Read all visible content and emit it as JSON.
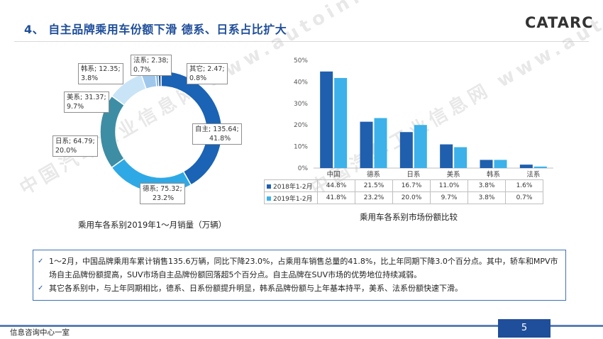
{
  "slide": {
    "title": "4、 自主品牌乘用车份额下滑  德系、日系占比扩大",
    "logo_text": "CATARC",
    "page_number": "5",
    "footer": "信息咨询中心一室",
    "watermark": "中国汽车工业信息网 www.autoinfo.org.cn"
  },
  "pie_caption": "乘用车各系别2019年1～月销量（万辆）",
  "bar_caption": "乘用车各系别市场份额比较",
  "colors": {
    "series_2018": "#1f5fae",
    "series_2019": "#3cb1ea",
    "title": "#1f4e9a"
  },
  "chart_data": [
    {
      "type": "pie",
      "style": "doughnut",
      "title": "乘用车各系别2019年1～月销量（万辆）",
      "slices": [
        {
          "name": "自主",
          "value": 135.64,
          "pct": "41.8%",
          "color": "#1a63b5"
        },
        {
          "name": "德系",
          "value": 75.32,
          "pct": "23.2%",
          "color": "#2fa9e6"
        },
        {
          "name": "日系",
          "value": 64.79,
          "pct": "20.0%",
          "color": "#3d8ea4"
        },
        {
          "name": "美系",
          "value": 31.37,
          "pct": "9.7%",
          "color": "#c9e4f7"
        },
        {
          "name": "韩系",
          "value": 12.35,
          "pct": "3.8%",
          "color": "#9fc7ec"
        },
        {
          "name": "法系",
          "value": 2.38,
          "pct": "0.7%",
          "color": "#6fa8dc"
        },
        {
          "name": "其它",
          "value": 2.47,
          "pct": "0.8%",
          "color": "#1a4f8f"
        }
      ]
    },
    {
      "type": "bar",
      "title": "乘用车各系别市场份额比较",
      "categories": [
        "中国",
        "德系",
        "日系",
        "美系",
        "韩系",
        "法系"
      ],
      "series": [
        {
          "name": "2018年1-2月",
          "values": [
            44.8,
            21.5,
            16.7,
            11.0,
            3.8,
            1.6
          ],
          "labels": [
            "44.8%",
            "21.5%",
            "16.7%",
            "11.0%",
            "3.8%",
            "1.6%"
          ]
        },
        {
          "name": "2019年1-2月",
          "values": [
            41.8,
            23.2,
            20.0,
            9.7,
            3.8,
            0.7
          ],
          "labels": [
            "41.8%",
            "23.2%",
            "20.0%",
            "9.7%",
            "3.8%",
            "0.7%"
          ]
        }
      ],
      "ylim": [
        0,
        50
      ],
      "yticks": [
        "0%",
        "10%",
        "20%",
        "30%",
        "40%",
        "50%"
      ],
      "legend": "data-table"
    }
  ],
  "bullets": [
    "1～2月，中国品牌乘用车累计销售135.6万辆，同比下降23.0%，占乘用车销售总量的41.8%，比上年同期下降3.0个百分点。其中，轿车和MPV市场自主品牌份额提高，SUV市场自主品牌份额回落超5个百分点。自主品牌在SUV市场的优势地位持续减弱。",
    "其它各系别中，与上年同期相比，德系、日系份额提升明显，韩系品牌份额与上年基本持平，美系、法系份额快速下滑。"
  ]
}
